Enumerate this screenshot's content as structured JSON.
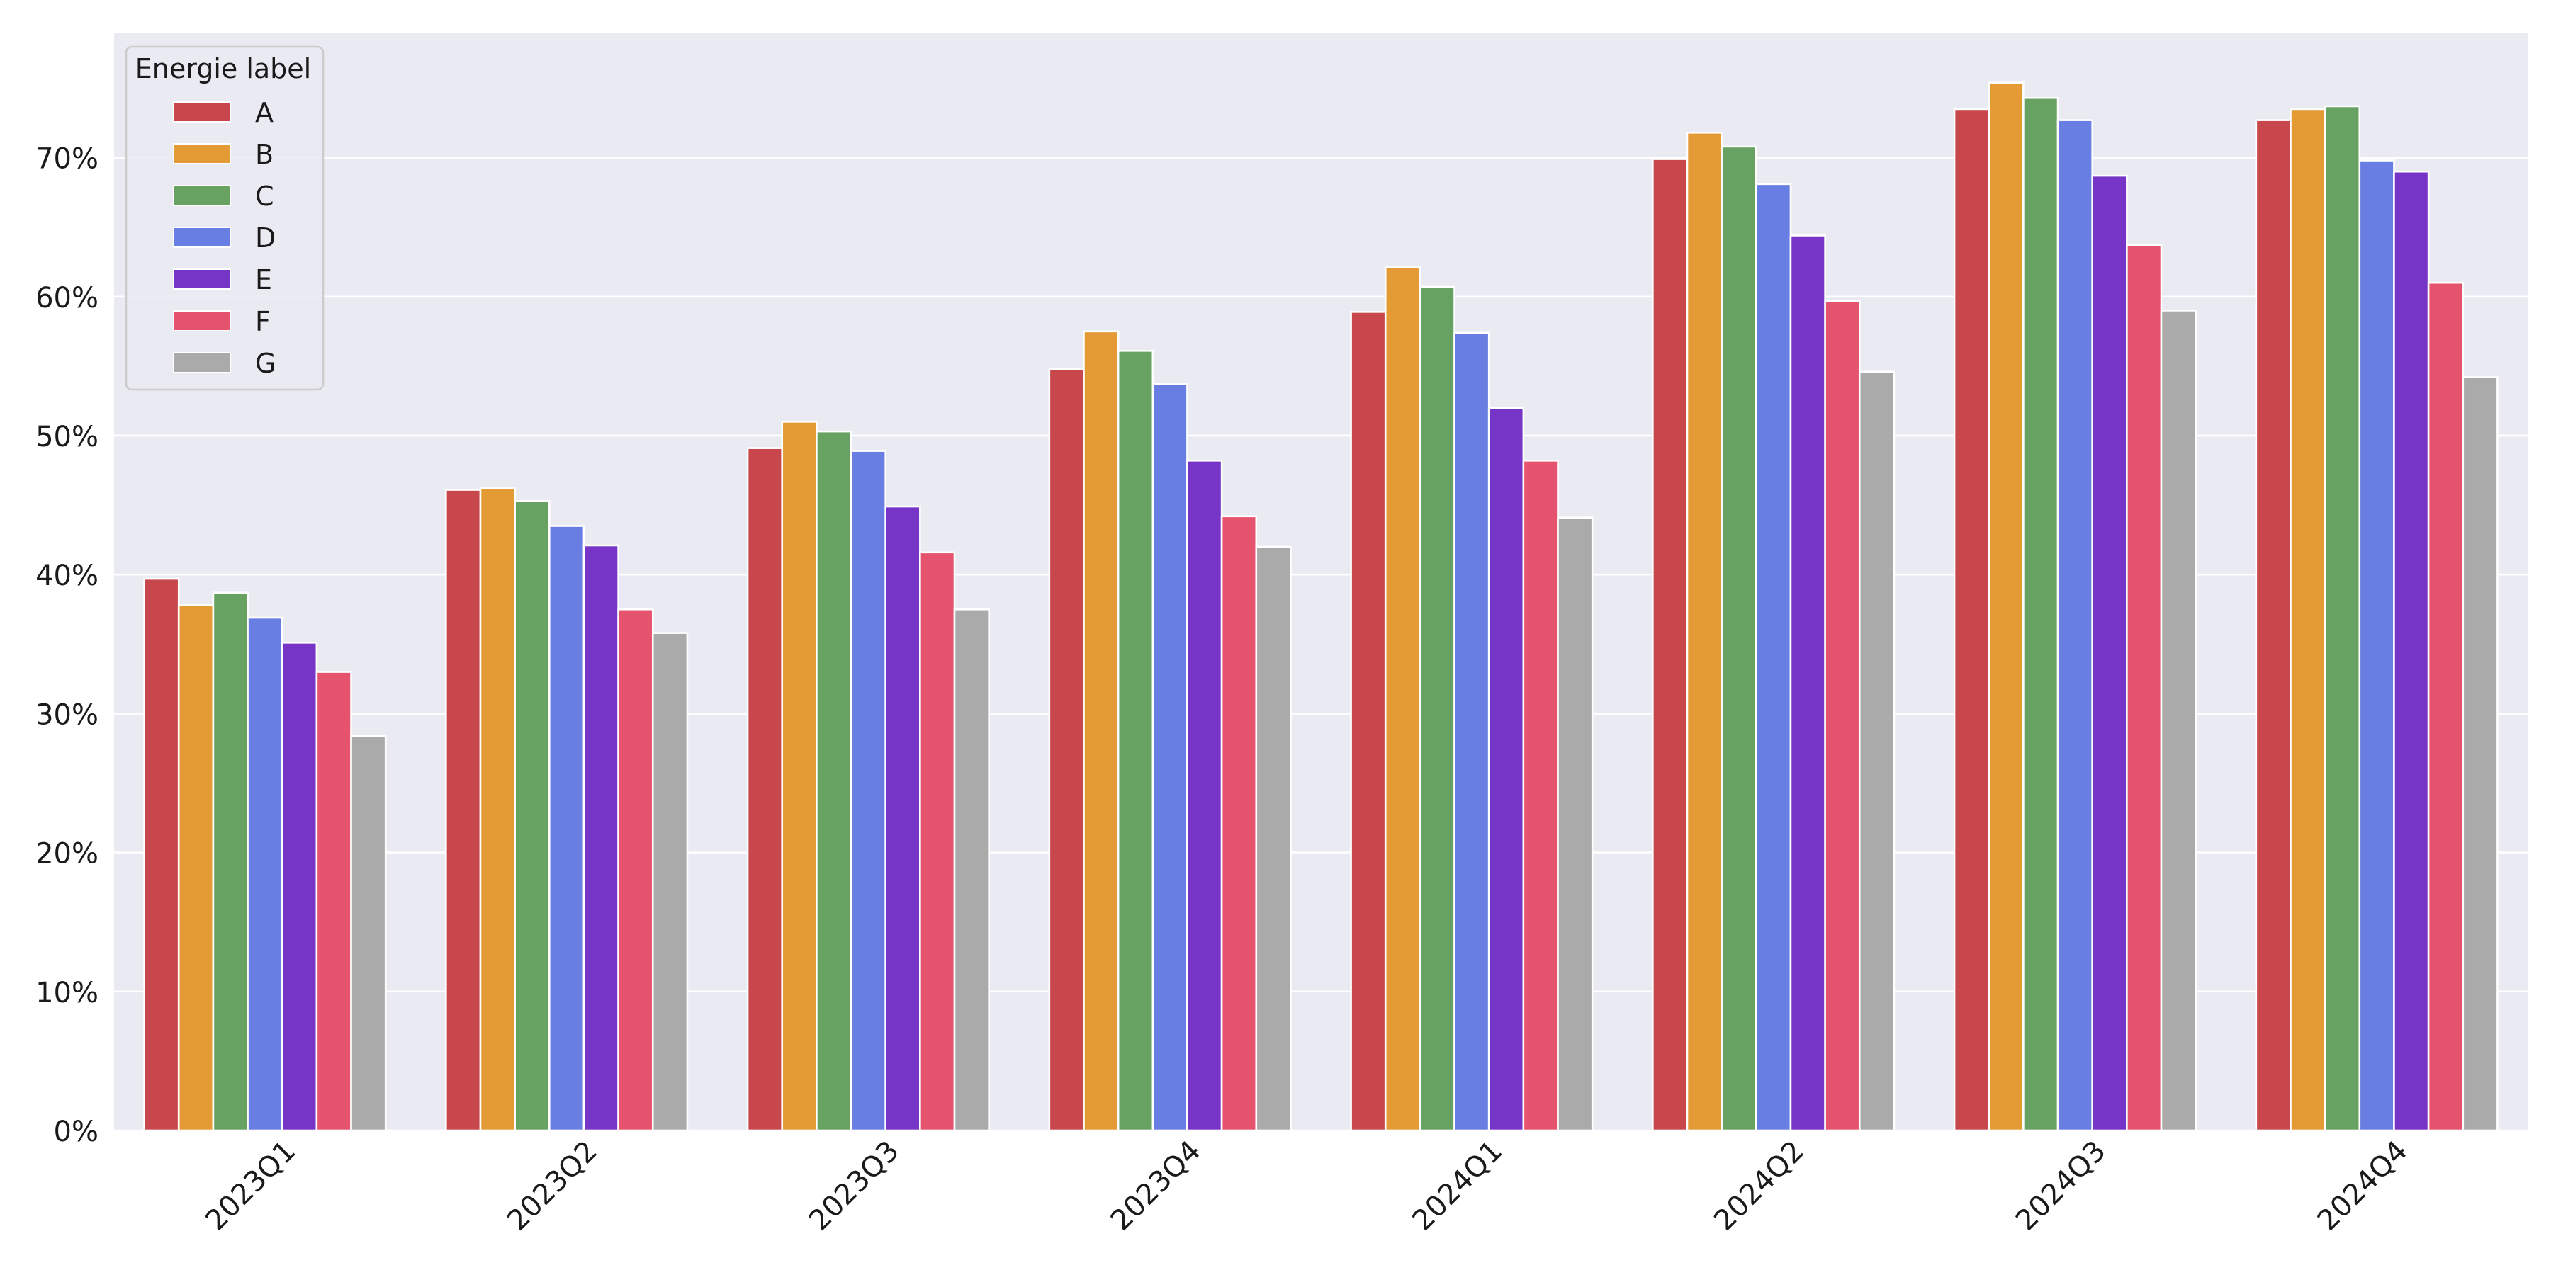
{
  "chart_data": {
    "type": "bar",
    "title": "",
    "xlabel": "",
    "ylabel": "",
    "categories": [
      "2023Q1",
      "2023Q2",
      "2023Q3",
      "2023Q4",
      "2024Q1",
      "2024Q2",
      "2024Q3",
      "2024Q4"
    ],
    "y_ticks": [
      "0%",
      "10%",
      "20%",
      "30%",
      "40%",
      "50%",
      "60%",
      "70%"
    ],
    "ylim": [
      0,
      0.79
    ],
    "y_format": "percent",
    "grid": true,
    "background": "#eaeaf2",
    "legend": {
      "title": "Energie label",
      "position": "top-left"
    },
    "series": [
      {
        "name": "A",
        "color": "#c8474c",
        "values": [
          0.397,
          0.461,
          0.491,
          0.548,
          0.589,
          0.699,
          0.735,
          0.727
        ]
      },
      {
        "name": "B",
        "color": "#e49a35",
        "values": [
          0.378,
          0.462,
          0.51,
          0.575,
          0.621,
          0.718,
          0.754,
          0.735
        ]
      },
      {
        "name": "C",
        "color": "#67a262",
        "values": [
          0.387,
          0.453,
          0.503,
          0.561,
          0.607,
          0.708,
          0.743,
          0.737
        ]
      },
      {
        "name": "D",
        "color": "#687ee2",
        "values": [
          0.369,
          0.435,
          0.489,
          0.537,
          0.574,
          0.681,
          0.727,
          0.698
        ]
      },
      {
        "name": "E",
        "color": "#7635c7",
        "values": [
          0.351,
          0.421,
          0.449,
          0.482,
          0.52,
          0.644,
          0.687,
          0.69
        ]
      },
      {
        "name": "F",
        "color": "#e6536f",
        "values": [
          0.33,
          0.375,
          0.416,
          0.442,
          0.482,
          0.597,
          0.637,
          0.61
        ]
      },
      {
        "name": "G",
        "color": "#aaaaaa",
        "values": [
          0.284,
          0.358,
          0.375,
          0.42,
          0.441,
          0.546,
          0.59,
          0.542
        ]
      }
    ]
  }
}
